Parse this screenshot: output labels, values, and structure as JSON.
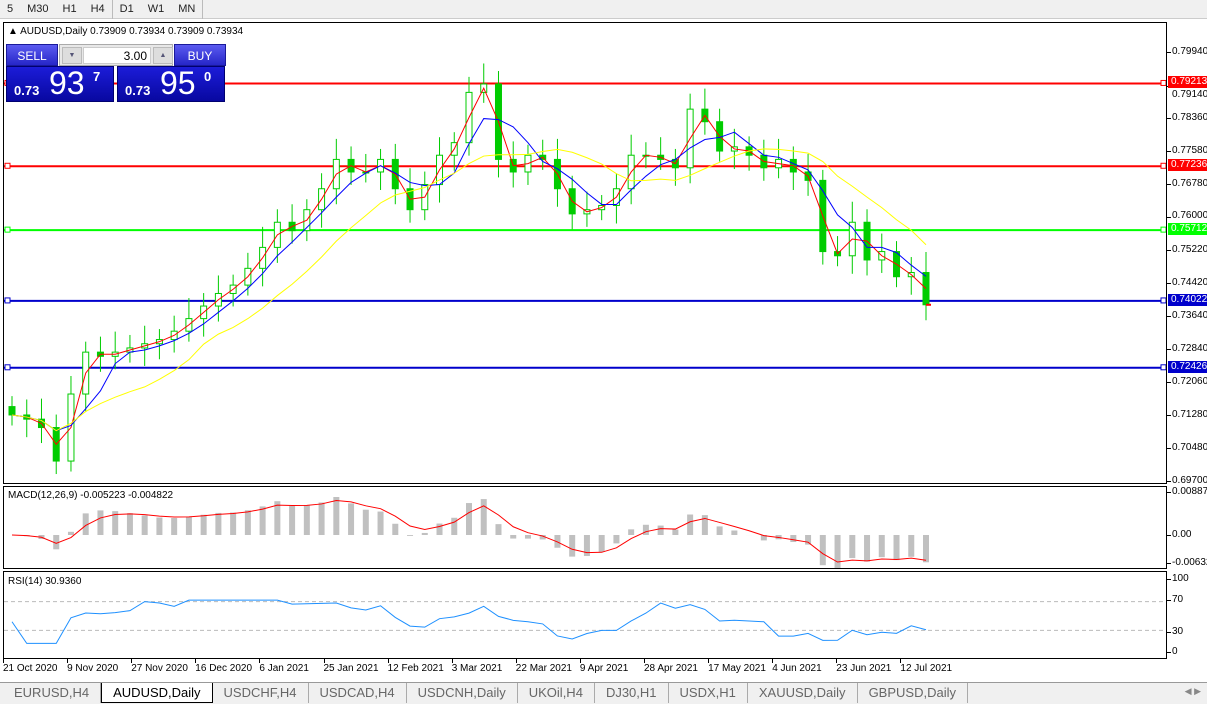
{
  "toolbar": {
    "timeframes": [
      "5",
      "M30",
      "H1",
      "H4",
      "D1",
      "W1",
      "MN"
    ],
    "active": "D1"
  },
  "chart": {
    "caption": "AUDUSD,Daily  0.73909 0.73934 0.73909 0.73934",
    "sell_label": "SELL",
    "buy_label": "BUY",
    "lot": "3.00",
    "sell_price": {
      "prefix": "0.73",
      "big": "93",
      "sup": "7"
    },
    "buy_price": {
      "prefix": "0.73",
      "big": "95",
      "sup": "0"
    }
  },
  "colors": {
    "bull": "#00cc00",
    "bear": "#00cc00",
    "ma_fast": "#ff0000",
    "ma_mid": "#0000ff",
    "ma_slow": "#ffff00",
    "macd_hist": "#c0c0c0",
    "macd_signal": "#ff0000",
    "rsi": "#1e90ff"
  },
  "price_axis": {
    "ticks": [
      "0.79940",
      "0.79140",
      "0.78360",
      "0.77580",
      "0.76780",
      "0.76000",
      "0.75220",
      "0.74420",
      "0.73640",
      "0.72840",
      "0.72060",
      "0.71280",
      "0.70480",
      "0.69700"
    ],
    "min": 0.697,
    "max": 0.7994
  },
  "levels": [
    {
      "value": "0.79213",
      "color": "#ff0000"
    },
    {
      "value": "0.77236",
      "color": "#ff0000"
    },
    {
      "value": "0.75712",
      "color": "#00ff00"
    },
    {
      "value": "0.74022",
      "color": "#0000cc"
    },
    {
      "value": "0.72426",
      "color": "#0000cc"
    }
  ],
  "macd": {
    "caption": "MACD(12,26,9) -0.005223 -0.004822",
    "ticks": [
      "0.008871",
      "0.00",
      "-0.00632"
    ]
  },
  "rsi": {
    "caption": "RSI(14) 30.9360",
    "ticks": [
      "100",
      "70",
      "30",
      "0"
    ]
  },
  "dates": [
    "21 Oct 2020",
    "9 Nov 2020",
    "27 Nov 2020",
    "16 Dec 2020",
    "6 Jan 2021",
    "25 Jan 2021",
    "12 Feb 2021",
    "3 Mar 2021",
    "22 Mar 2021",
    "9 Apr 2021",
    "28 Apr 2021",
    "17 May 2021",
    "4 Jun 2021",
    "23 Jun 2021",
    "12 Jul 2021"
  ],
  "chart_data": {
    "type": "candlestick",
    "symbol": "AUDUSD",
    "timeframe": "Daily",
    "closes_approx": [
      0.713,
      0.712,
      0.71,
      0.702,
      0.718,
      0.728,
      0.727,
      0.728,
      0.729,
      0.73,
      0.731,
      0.733,
      0.736,
      0.739,
      0.742,
      0.744,
      0.748,
      0.753,
      0.759,
      0.757,
      0.762,
      0.767,
      0.774,
      0.771,
      0.771,
      0.774,
      0.767,
      0.762,
      0.768,
      0.775,
      0.778,
      0.79,
      0.792,
      0.774,
      0.771,
      0.775,
      0.774,
      0.767,
      0.761,
      0.762,
      0.763,
      0.767,
      0.775,
      0.775,
      0.774,
      0.772,
      0.786,
      0.783,
      0.776,
      0.777,
      0.775,
      0.772,
      0.774,
      0.771,
      0.769,
      0.752,
      0.751,
      0.759,
      0.75,
      0.752,
      0.746,
      0.747,
      0.7393
    ]
  },
  "tabs": [
    "EURUSD,H4",
    "AUDUSD,Daily",
    "USDCHF,H4",
    "USDCAD,H4",
    "USDCNH,Daily",
    "UKOil,H4",
    "DJ30,H1",
    "USDX,H1",
    "XAUUSD,Daily",
    "GBPUSD,Daily"
  ],
  "active_tab": "AUDUSD,Daily"
}
